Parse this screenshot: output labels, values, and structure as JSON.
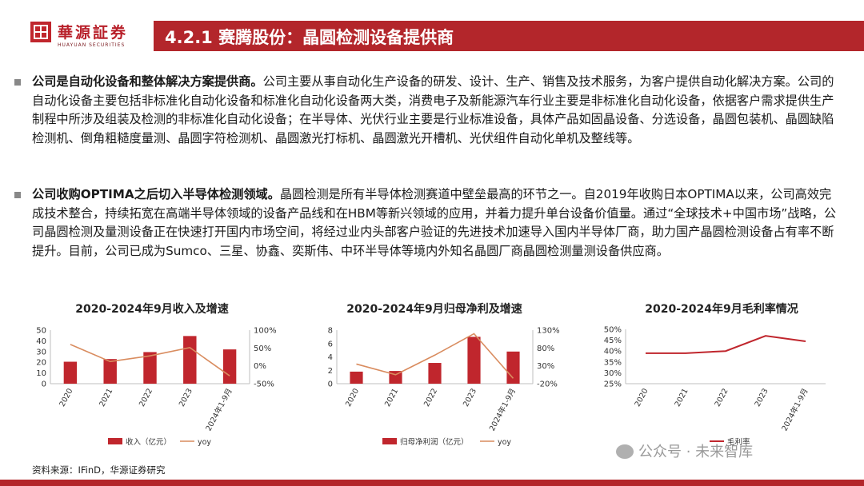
{
  "header": {
    "brand_cn": "華源証券",
    "brand_en": "HUAYUAN SECURITIES",
    "title": "4.2.1 赛腾股份：晶圆检测设备提供商",
    "accent": "#b3262b"
  },
  "paragraphs": [
    {
      "lead": "公司是自动化设备和整体解决方案提供商。",
      "body": "公司主要从事自动化生产设备的研发、设计、生产、销售及技术服务，为客户提供自动化解决方案。公司的自动化设备主要包括非标准化自动化设备和标准化自动化设备两大类，消费电子及新能源汽车行业主要是非标准化自动化设备，依据客户需求提供生产制程中所涉及组装及检测的非标准化自动化设备；在半导体、光伏行业主要是行业标准设备，具体产品如固晶设备、分选设备，晶圆包装机、晶圆缺陷检测机、倒角粗糙度量测、晶圆字符检测机、晶圆激光打标机、晶圆激光开槽机、光伏组件自动化单机及整线等。"
    },
    {
      "lead": "公司收购OPTIMA之后切入半导体检测领域。",
      "body": "晶圆检测是所有半导体检测赛道中壁垒最高的环节之一。自2019年收购日本OPTIMA以来，公司高效完成技术整合，持续拓宽在高端半导体领域的设备产品线和在HBM等新兴领域的应用，并着力提升单台设备价值量。通过“全球技术+中国市场”战略，公司晶圆检测及量测设备正在快速打开国内市场空间，将经过业内头部客户验证的先进技术加速导入国内半导体厂商，助力国产晶圆检测设备占有率不断提升。目前，公司已成为Sumco、三星、协鑫、奕斯伟、中环半导体等境内外知名晶圆厂商晶圆检测量测设备供应商。"
    }
  ],
  "charts": [
    {
      "title": "2020-2024年9月收入及增速",
      "legend": [
        "收入（亿元）",
        "yoy"
      ]
    },
    {
      "title": "2020-2024年9月归母净利及增速",
      "legend": [
        "归母净利润（亿元）",
        "yoy"
      ]
    },
    {
      "title": "2020-2024年9月毛利率情况",
      "legend": [
        "毛利率"
      ]
    }
  ],
  "chart_data": [
    {
      "type": "bar",
      "title": "2020-2024年9月收入及增速",
      "categories": [
        "2020",
        "2021",
        "2022",
        "2023",
        "2024年1-9月"
      ],
      "series": [
        {
          "name": "收入（亿元）",
          "type": "bar",
          "axis": "left",
          "values": [
            20.5,
            23.0,
            29.5,
            44.5,
            32.0
          ],
          "color": "#c0262d"
        },
        {
          "name": "yoy",
          "type": "line",
          "axis": "right",
          "values": [
            0.6,
            0.12,
            0.28,
            0.51,
            -0.28
          ],
          "color": "#d98c5f"
        }
      ],
      "ylim_left": [
        0,
        50
      ],
      "yticks_left": [
        "0",
        "10",
        "20",
        "30",
        "40",
        "50"
      ],
      "ylim_right": [
        -0.5,
        1.0
      ],
      "yticks_right": [
        "-50%",
        "0%",
        "50%",
        "100%"
      ]
    },
    {
      "type": "bar",
      "title": "2020-2024年9月归母净利及增速",
      "categories": [
        "2020",
        "2021",
        "2022",
        "2023",
        "2024年1-9月"
      ],
      "series": [
        {
          "name": "归母净利润（亿元）",
          "type": "bar",
          "axis": "left",
          "values": [
            1.8,
            1.9,
            3.1,
            7.0,
            4.8
          ],
          "color": "#c0262d"
        },
        {
          "name": "yoy",
          "type": "line",
          "axis": "right",
          "values": [
            0.35,
            0.05,
            0.6,
            1.2,
            -0.05
          ],
          "color": "#d98c5f"
        }
      ],
      "ylim_left": [
        0,
        8
      ],
      "yticks_left": [
        "0",
        "2",
        "4",
        "6",
        "8"
      ],
      "ylim_right": [
        -0.2,
        1.3
      ],
      "yticks_right": [
        "-20%",
        "30%",
        "80%",
        "130%"
      ]
    },
    {
      "type": "line",
      "title": "2020-2024年9月毛利率情况",
      "categories": [
        "2020",
        "2021",
        "2022",
        "2023",
        "2024年1-9月"
      ],
      "series": [
        {
          "name": "毛利率",
          "values": [
            0.39,
            0.39,
            0.4,
            0.47,
            0.445
          ],
          "color": "#c0262d"
        }
      ],
      "ylim": [
        0.25,
        0.5
      ],
      "yticks": [
        "25%",
        "30%",
        "35%",
        "40%",
        "45%",
        "50%"
      ]
    }
  ],
  "source": "资料来源：IFinD，华源证券研究",
  "watermark": "公众号 · 未来智库"
}
